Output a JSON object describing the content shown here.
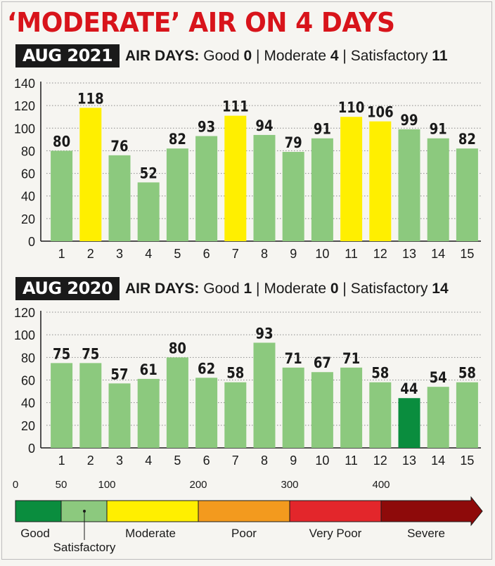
{
  "headline": "‘MODERATE’ AIR ON 4 DAYS",
  "colors": {
    "good": "#0a8d3e",
    "satisfactory": "#8cc97e",
    "moderate": "#ffef00",
    "poor": "#f39a1e",
    "very_poor": "#e3262b",
    "severe": "#8e0a0a",
    "headline": "#d8141b"
  },
  "sections": [
    {
      "year_tag": "AUG 2021",
      "air_days_label": "AIR DAYS:",
      "good_label": "Good",
      "good_count": "0",
      "moderate_label": "Moderate",
      "moderate_count": "4",
      "satisfactory_label": "Satisfactory",
      "satisfactory_count": "11",
      "separator": "|"
    },
    {
      "year_tag": "AUG 2020",
      "air_days_label": "AIR DAYS:",
      "good_label": "Good",
      "good_count": "1",
      "moderate_label": "Moderate",
      "moderate_count": "0",
      "satisfactory_label": "Satisfactory",
      "satisfactory_count": "14",
      "separator": "|"
    }
  ],
  "chart_data": [
    {
      "type": "bar",
      "title": "AUG 2021",
      "categories": [
        "1",
        "2",
        "3",
        "4",
        "5",
        "6",
        "7",
        "8",
        "9",
        "10",
        "11",
        "12",
        "13",
        "14",
        "15"
      ],
      "values": [
        80,
        118,
        76,
        52,
        82,
        93,
        111,
        94,
        79,
        91,
        110,
        106,
        99,
        91,
        82
      ],
      "bar_categories": [
        "satisfactory",
        "moderate",
        "satisfactory",
        "satisfactory",
        "satisfactory",
        "satisfactory",
        "moderate",
        "satisfactory",
        "satisfactory",
        "satisfactory",
        "moderate",
        "moderate",
        "satisfactory",
        "satisfactory",
        "satisfactory"
      ],
      "yticks": [
        0,
        20,
        40,
        60,
        80,
        100,
        120,
        140
      ],
      "ylim": [
        0,
        140
      ],
      "grid": "dotted horizontal"
    },
    {
      "type": "bar",
      "title": "AUG 2020",
      "categories": [
        "1",
        "2",
        "3",
        "4",
        "5",
        "6",
        "7",
        "8",
        "9",
        "10",
        "11",
        "12",
        "13",
        "14",
        "15"
      ],
      "values": [
        75,
        75,
        57,
        61,
        80,
        62,
        58,
        93,
        71,
        67,
        71,
        58,
        44,
        54,
        58
      ],
      "bar_categories": [
        "satisfactory",
        "satisfactory",
        "satisfactory",
        "satisfactory",
        "satisfactory",
        "satisfactory",
        "satisfactory",
        "satisfactory",
        "satisfactory",
        "satisfactory",
        "satisfactory",
        "satisfactory",
        "good",
        "satisfactory",
        "satisfactory"
      ],
      "yticks": [
        0,
        20,
        40,
        60,
        80,
        100,
        120
      ],
      "ylim": [
        0,
        120
      ],
      "grid": "dotted horizontal"
    }
  ],
  "scale": {
    "ticks": [
      "0",
      "50",
      "100",
      "200",
      "300",
      "400"
    ],
    "bands": [
      {
        "key": "good",
        "label": "Good"
      },
      {
        "key": "satisfactory",
        "label": "Satisfactory"
      },
      {
        "key": "moderate",
        "label": "Moderate"
      },
      {
        "key": "poor",
        "label": "Poor"
      },
      {
        "key": "very_poor",
        "label": "Very Poor"
      },
      {
        "key": "severe",
        "label": "Severe"
      }
    ]
  }
}
